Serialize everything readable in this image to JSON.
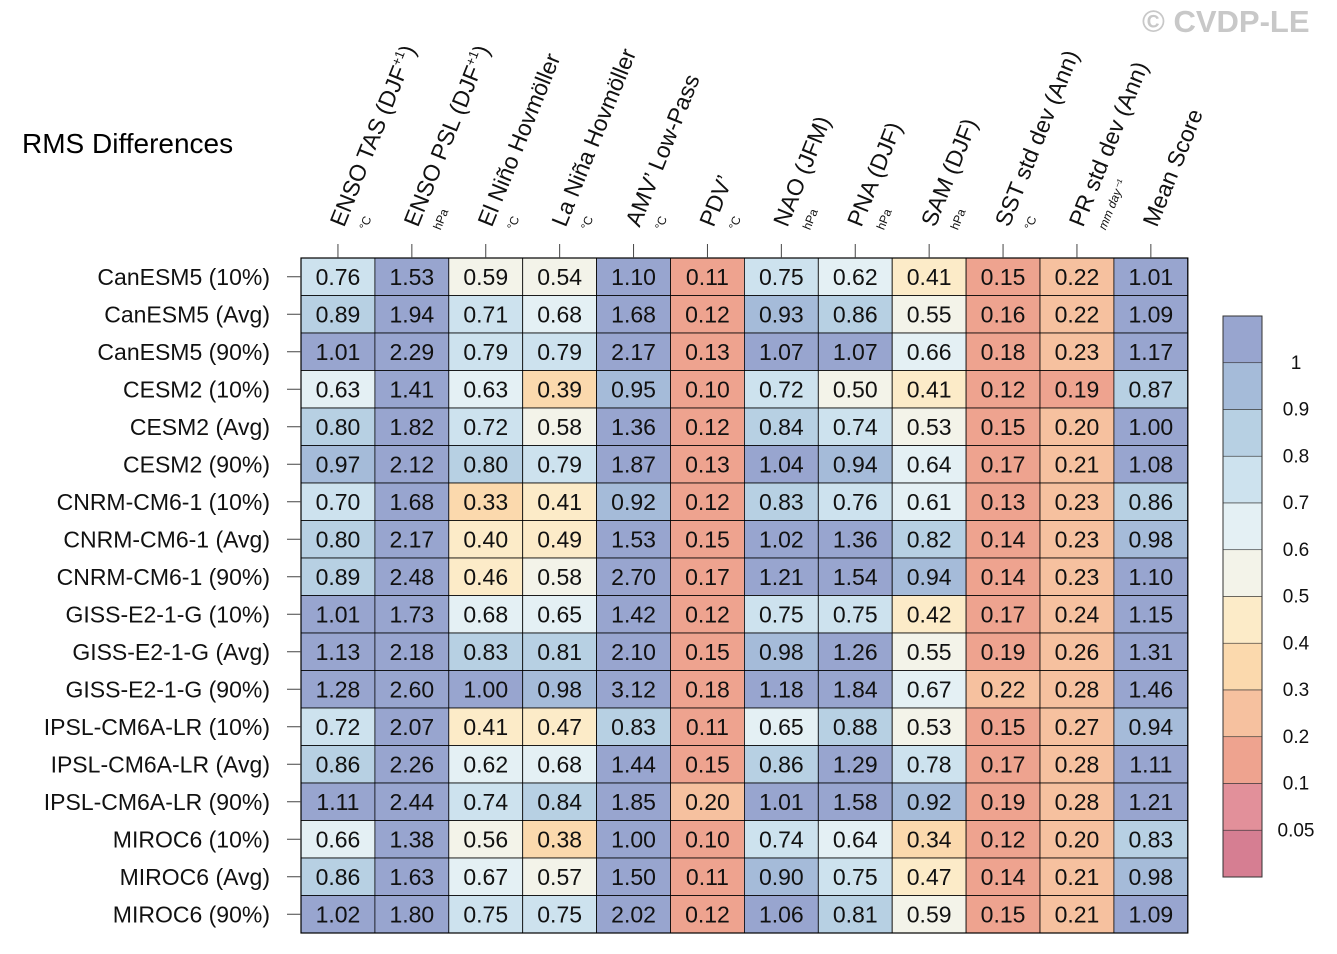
{
  "watermark": "© CVDP-LE",
  "chart_data": {
    "type": "heatmap",
    "title": "RMS Differences",
    "columns": [
      {
        "label": "ENSO TAS (DJF",
        "sup": "+1",
        "tail": ")",
        "unit": "°C"
      },
      {
        "label": "ENSO PSL (DJF",
        "sup": "+1",
        "tail": ")",
        "unit": "hPa"
      },
      {
        "label": "El Niño Hovmöller",
        "sup": "",
        "tail": "",
        "unit": "°C"
      },
      {
        "label": "La Niña Hovmöller",
        "sup": "",
        "tail": "",
        "unit": "°C"
      },
      {
        "label": "AMV’ Low-Pass",
        "sup": "",
        "tail": "",
        "unit": "°C"
      },
      {
        "label": "PDV’",
        "sup": "",
        "tail": "",
        "unit": "°C"
      },
      {
        "label": "NAO (JFM)",
        "sup": "",
        "tail": "",
        "unit": "hPa"
      },
      {
        "label": "PNA (DJF)",
        "sup": "",
        "tail": "",
        "unit": "hPa"
      },
      {
        "label": "SAM (DJF)",
        "sup": "",
        "tail": "",
        "unit": "hPa"
      },
      {
        "label": "SST std dev (Ann)",
        "sup": "",
        "tail": "",
        "unit": "°C"
      },
      {
        "label": "PR std dev (Ann)",
        "sup": "",
        "tail": "",
        "unit": "mm day⁻¹"
      },
      {
        "label": "Mean Score",
        "sup": "",
        "tail": "",
        "unit": ""
      }
    ],
    "rows": [
      "CanESM5 (10%)",
      "CanESM5 (Avg)",
      "CanESM5 (90%)",
      "CESM2 (10%)",
      "CESM2 (Avg)",
      "CESM2 (90%)",
      "CNRM-CM6-1 (10%)",
      "CNRM-CM6-1 (Avg)",
      "CNRM-CM6-1 (90%)",
      "GISS-E2-1-G (10%)",
      "GISS-E2-1-G (Avg)",
      "GISS-E2-1-G (90%)",
      "IPSL-CM6A-LR (10%)",
      "IPSL-CM6A-LR (Avg)",
      "IPSL-CM6A-LR (90%)",
      "MIROC6 (10%)",
      "MIROC6 (Avg)",
      "MIROC6 (90%)"
    ],
    "values": [
      [
        "0.76",
        "1.53",
        "0.59",
        "0.54",
        "1.10",
        "0.11",
        "0.75",
        "0.62",
        "0.41",
        "0.15",
        "0.22",
        "1.01"
      ],
      [
        "0.89",
        "1.94",
        "0.71",
        "0.68",
        "1.68",
        "0.12",
        "0.93",
        "0.86",
        "0.55",
        "0.16",
        "0.22",
        "1.09"
      ],
      [
        "1.01",
        "2.29",
        "0.79",
        "0.79",
        "2.17",
        "0.13",
        "1.07",
        "1.07",
        "0.66",
        "0.18",
        "0.23",
        "1.17"
      ],
      [
        "0.63",
        "1.41",
        "0.63",
        "0.39",
        "0.95",
        "0.10",
        "0.72",
        "0.50",
        "0.41",
        "0.12",
        "0.19",
        "0.87"
      ],
      [
        "0.80",
        "1.82",
        "0.72",
        "0.58",
        "1.36",
        "0.12",
        "0.84",
        "0.74",
        "0.53",
        "0.15",
        "0.20",
        "1.00"
      ],
      [
        "0.97",
        "2.12",
        "0.80",
        "0.79",
        "1.87",
        "0.13",
        "1.04",
        "0.94",
        "0.64",
        "0.17",
        "0.21",
        "1.08"
      ],
      [
        "0.70",
        "1.68",
        "0.33",
        "0.41",
        "0.92",
        "0.12",
        "0.83",
        "0.76",
        "0.61",
        "0.13",
        "0.23",
        "0.86"
      ],
      [
        "0.80",
        "2.17",
        "0.40",
        "0.49",
        "1.53",
        "0.15",
        "1.02",
        "1.36",
        "0.82",
        "0.14",
        "0.23",
        "0.98"
      ],
      [
        "0.89",
        "2.48",
        "0.46",
        "0.58",
        "2.70",
        "0.17",
        "1.21",
        "1.54",
        "0.94",
        "0.14",
        "0.23",
        "1.10"
      ],
      [
        "1.01",
        "1.73",
        "0.68",
        "0.65",
        "1.42",
        "0.12",
        "0.75",
        "0.75",
        "0.42",
        "0.17",
        "0.24",
        "1.15"
      ],
      [
        "1.13",
        "2.18",
        "0.83",
        "0.81",
        "2.10",
        "0.15",
        "0.98",
        "1.26",
        "0.55",
        "0.19",
        "0.26",
        "1.31"
      ],
      [
        "1.28",
        "2.60",
        "1.00",
        "0.98",
        "3.12",
        "0.18",
        "1.18",
        "1.84",
        "0.67",
        "0.22",
        "0.28",
        "1.46"
      ],
      [
        "0.72",
        "2.07",
        "0.41",
        "0.47",
        "0.83",
        "0.11",
        "0.65",
        "0.88",
        "0.53",
        "0.15",
        "0.27",
        "0.94"
      ],
      [
        "0.86",
        "2.26",
        "0.62",
        "0.68",
        "1.44",
        "0.15",
        "0.86",
        "1.29",
        "0.78",
        "0.17",
        "0.28",
        "1.11"
      ],
      [
        "1.11",
        "2.44",
        "0.74",
        "0.84",
        "1.85",
        "0.20",
        "1.01",
        "1.58",
        "0.92",
        "0.19",
        "0.28",
        "1.21"
      ],
      [
        "0.66",
        "1.38",
        "0.56",
        "0.38",
        "1.00",
        "0.10",
        "0.74",
        "0.64",
        "0.34",
        "0.12",
        "0.20",
        "0.83"
      ],
      [
        "0.86",
        "1.63",
        "0.67",
        "0.57",
        "1.50",
        "0.11",
        "0.90",
        "0.75",
        "0.47",
        "0.14",
        "0.21",
        "0.98"
      ],
      [
        "1.02",
        "1.80",
        "0.75",
        "0.75",
        "2.02",
        "0.12",
        "1.06",
        "0.81",
        "0.59",
        "0.15",
        "0.21",
        "1.09"
      ]
    ],
    "colorbar": {
      "labels": [
        "1",
        "0.9",
        "0.8",
        "0.7",
        "0.6",
        "0.5",
        "0.4",
        "0.3",
        "0.2",
        "0.1",
        "0.05"
      ],
      "thresholds": [
        1,
        0.9,
        0.8,
        0.7,
        0.6,
        0.5,
        0.4,
        0.3,
        0.2,
        0.1,
        0.05
      ],
      "colors": [
        "#98a5cf",
        "#a5bbd9",
        "#b7d0e3",
        "#cde2ee",
        "#e4f0f4",
        "#f3f3e9",
        "#fcebc8",
        "#fbd9ad",
        "#f6c19f",
        "#eea38f",
        "#e2909a",
        "#d67e92"
      ]
    }
  }
}
